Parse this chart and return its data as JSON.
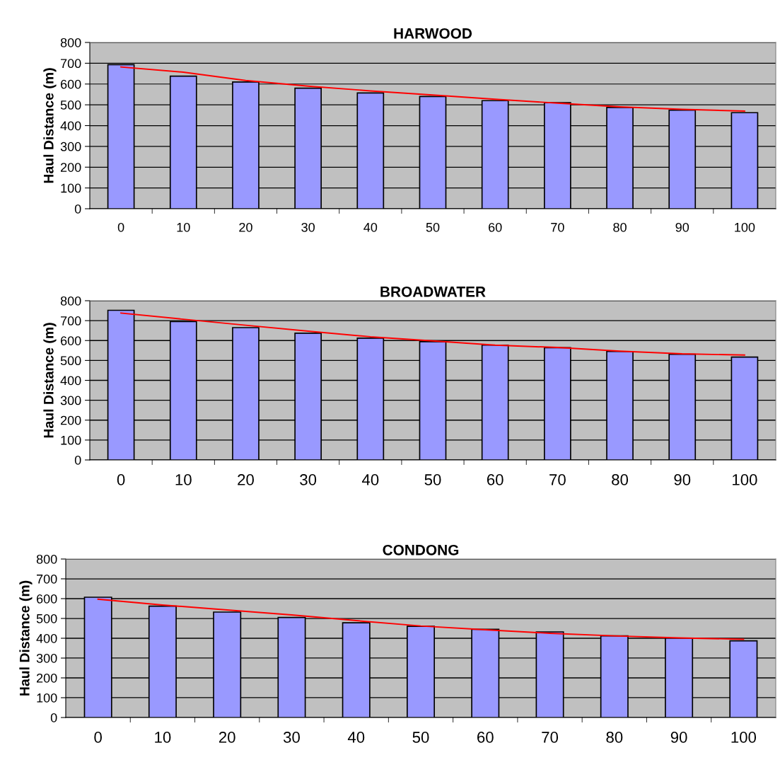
{
  "chart_data": [
    {
      "type": "bar",
      "title": "HARWOOD",
      "ylabel": "Haul Distance (m)",
      "categories": [
        "0",
        "10",
        "20",
        "30",
        "40",
        "50",
        "60",
        "70",
        "80",
        "90",
        "100"
      ],
      "ylim": [
        0,
        800
      ],
      "yticks": [
        0,
        100,
        200,
        300,
        400,
        500,
        600,
        700,
        800
      ],
      "grid": "y",
      "legend": false,
      "series": [
        {
          "color": "#9999ff",
          "values": [
            693,
            638,
            610,
            580,
            557,
            540,
            520,
            510,
            487,
            474,
            462
          ]
        },
        {
          "type": "line",
          "color": "#ff0000",
          "values": [
            682,
            657,
            617,
            590,
            567,
            547,
            527,
            508,
            490,
            478,
            470
          ]
        }
      ]
    },
    {
      "type": "bar",
      "title": "BROADWATER",
      "ylabel": "Haul Distance (m)",
      "categories": [
        "0",
        "10",
        "20",
        "30",
        "40",
        "50",
        "60",
        "70",
        "80",
        "90",
        "100"
      ],
      "ylim": [
        0,
        800
      ],
      "yticks": [
        0,
        100,
        200,
        300,
        400,
        500,
        600,
        700,
        800
      ],
      "grid": "y",
      "legend": false,
      "series": [
        {
          "color": "#9999ff",
          "values": [
            752,
            695,
            665,
            637,
            612,
            594,
            577,
            564,
            545,
            531,
            517
          ]
        },
        {
          "type": "line",
          "color": "#ff0000",
          "values": [
            738,
            707,
            677,
            647,
            619,
            598,
            577,
            565,
            547,
            533,
            527
          ]
        }
      ]
    },
    {
      "type": "bar",
      "title": "CONDONG",
      "ylabel": "Haul Distance (m)",
      "categories": [
        "0",
        "10",
        "20",
        "30",
        "40",
        "50",
        "60",
        "70",
        "80",
        "90",
        "100"
      ],
      "ylim": [
        0,
        800
      ],
      "yticks": [
        0,
        100,
        200,
        300,
        400,
        500,
        600,
        700,
        800
      ],
      "grid": "y",
      "legend": false,
      "series": [
        {
          "color": "#9999ff",
          "values": [
            607,
            562,
            532,
            505,
            478,
            460,
            445,
            432,
            412,
            400,
            387
          ]
        },
        {
          "type": "line",
          "color": "#ff0000",
          "values": [
            597,
            568,
            543,
            518,
            489,
            462,
            443,
            425,
            412,
            402,
            395
          ]
        }
      ]
    }
  ]
}
